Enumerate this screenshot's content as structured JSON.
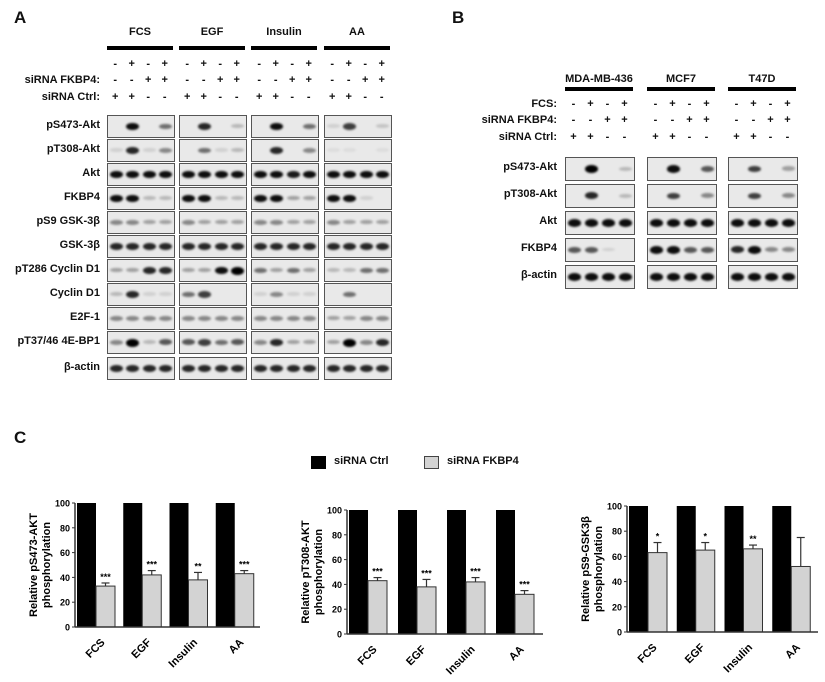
{
  "panel_a": {
    "letter": "A",
    "groups": [
      "FCS",
      "EGF",
      "Insulin",
      "AA"
    ],
    "condition_rows": [
      {
        "label": "",
        "signs": [
          "-",
          "+",
          "-",
          "+"
        ]
      },
      {
        "label": "siRNA FKBP4:",
        "signs": [
          "-",
          "-",
          "+",
          "+"
        ]
      },
      {
        "label": "siRNA Ctrl:",
        "signs": [
          "+",
          "+",
          "-",
          "-"
        ]
      }
    ],
    "blot_rows": [
      "pS473-Akt",
      "pT308-Akt",
      "Akt",
      "FKBP4",
      "pS9 GSK-3β",
      "GSK-3β",
      "pT286 Cyclin D1",
      "Cyclin D1",
      "E2F-1",
      "pT37/46 4E-BP1",
      "β-actin"
    ]
  },
  "panel_b": {
    "letter": "B",
    "groups": [
      "MDA-MB-436",
      "MCF7",
      "T47D"
    ],
    "condition_rows": [
      {
        "label": "FCS:",
        "signs": [
          "-",
          "+",
          "-",
          "+"
        ]
      },
      {
        "label": "siRNA FKBP4:",
        "signs": [
          "-",
          "-",
          "+",
          "+"
        ]
      },
      {
        "label": "siRNA Ctrl:",
        "signs": [
          "+",
          "+",
          "-",
          "-"
        ]
      }
    ],
    "blot_rows": [
      "pS473-Akt",
      "pT308-Akt",
      "Akt",
      "FKBP4",
      "β-actin"
    ]
  },
  "panel_c": {
    "letter": "C",
    "legend": [
      {
        "name": "siRNA Ctrl",
        "color": "#000000"
      },
      {
        "name": "siRNA FKBP4",
        "color": "#d3d3d3"
      }
    ]
  },
  "chart_data": [
    {
      "type": "bar",
      "categories": [
        "FCS",
        "EGF",
        "Insulin",
        "AA"
      ],
      "ylabel": [
        "Relative pS473-AKT",
        "phosphorylation"
      ],
      "ylim": [
        0,
        100
      ],
      "yticks": [
        0,
        20,
        40,
        60,
        80,
        100
      ],
      "series": [
        {
          "name": "siRNA Ctrl",
          "values": [
            100,
            100,
            100,
            100
          ]
        },
        {
          "name": "siRNA FKBP4",
          "values": [
            33,
            42,
            38,
            43
          ],
          "errors": [
            2.5,
            3.5,
            6,
            2.5
          ],
          "significance": [
            "***",
            "***",
            "**",
            "***"
          ]
        }
      ]
    },
    {
      "type": "bar",
      "categories": [
        "FCS",
        "EGF",
        "Insulin",
        "AA"
      ],
      "ylabel": [
        "Relative pT308-AKT",
        "phosphorylation"
      ],
      "ylim": [
        0,
        100
      ],
      "yticks": [
        0,
        20,
        40,
        60,
        80,
        100
      ],
      "series": [
        {
          "name": "siRNA Ctrl",
          "values": [
            100,
            100,
            100,
            100
          ]
        },
        {
          "name": "siRNA FKBP4",
          "values": [
            43,
            38,
            42,
            32
          ],
          "errors": [
            2.5,
            6,
            3.5,
            3
          ],
          "significance": [
            "***",
            "***",
            "***",
            "***"
          ]
        }
      ]
    },
    {
      "type": "bar",
      "categories": [
        "FCS",
        "EGF",
        "Insulin",
        "AA"
      ],
      "ylabel": [
        "Relative pS9-GSK3β",
        "phosphorylation"
      ],
      "ylim": [
        0,
        100
      ],
      "yticks": [
        0,
        20,
        40,
        60,
        80,
        100
      ],
      "series": [
        {
          "name": "siRNA Ctrl",
          "values": [
            100,
            100,
            100,
            100
          ]
        },
        {
          "name": "siRNA FKBP4",
          "values": [
            63,
            65,
            66,
            52
          ],
          "errors": [
            8,
            6,
            3,
            23
          ],
          "significance": [
            "*",
            "*",
            "**",
            ""
          ]
        }
      ]
    }
  ]
}
